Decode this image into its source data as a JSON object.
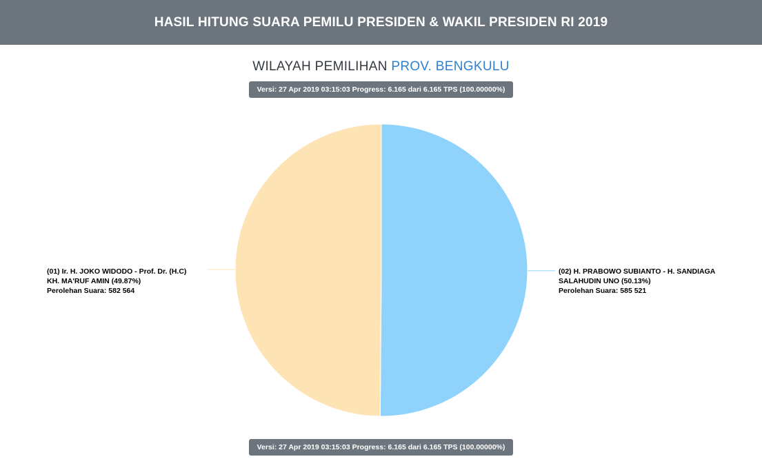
{
  "header": {
    "title": "HASIL HITUNG SUARA PEMILU PRESIDEN & WAKIL PRESIDEN RI 2019"
  },
  "region": {
    "prefix": "WILAYAH PEMILIHAN",
    "name": "PROV. BENGKULU"
  },
  "version_badge": "Versi: 27 Apr 2019 03:15:03 Progress: 6.165 dari 6.165 TPS (100.00000%)",
  "chart_data": {
    "type": "pie",
    "slices": [
      {
        "label_line1": "(01) Ir. H. JOKO WIDODO - Prof. Dr. (H.C)",
        "label_line2": "KH. MA'RUF AMIN (49.87%)",
        "votes_text": "Perolehan Suara: 582 564",
        "value": 582564,
        "percent": 49.87,
        "color": "#fee4b4"
      },
      {
        "label_line1": "(02) H. PRABOWO SUBIANTO - H. SANDIAGA",
        "label_line2": "SALAHUDIN UNO (50.13%)",
        "votes_text": "Perolehan Suara: 585 521",
        "value": 585521,
        "percent": 50.13,
        "color": "#8fd3fd"
      }
    ]
  }
}
